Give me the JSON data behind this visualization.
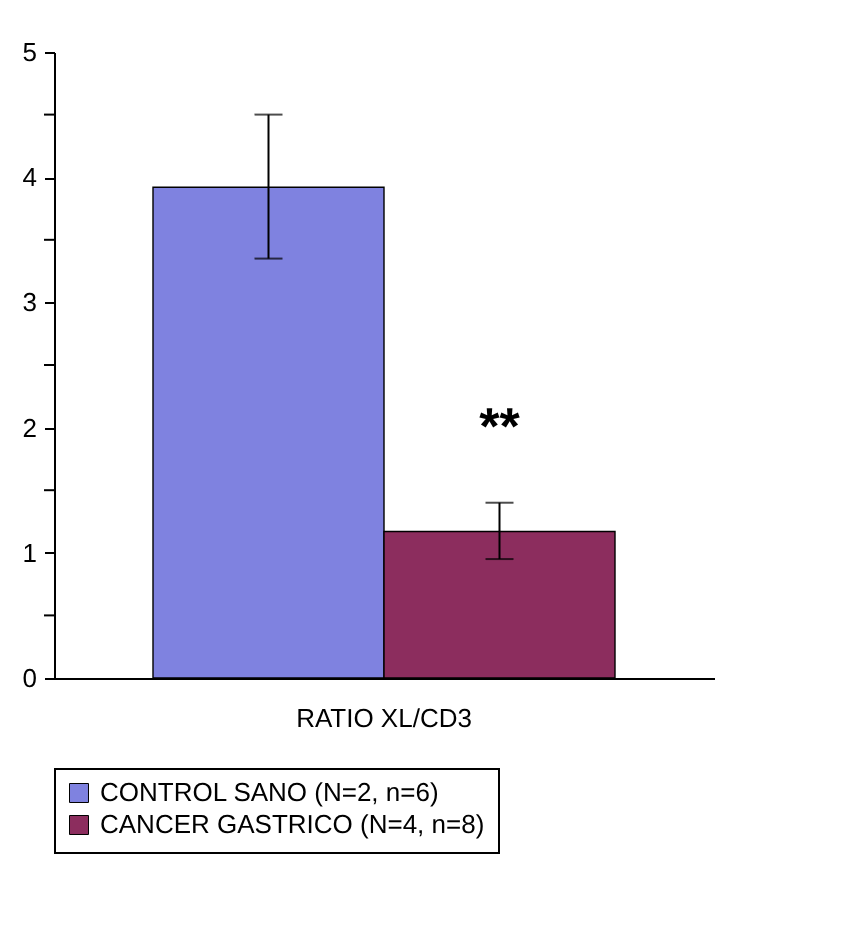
{
  "chart_data": {
    "type": "bar",
    "categories": [
      "RATIO XL/CD3"
    ],
    "series": [
      {
        "name": "CONTROL SANO (N=2, n=6)",
        "color": "#7f82e0",
        "values": [
          3.92
        ],
        "errors": [
          [
            3.35,
            4.5
          ]
        ]
      },
      {
        "name": "CANCER GASTRICO (N=4, n=8)",
        "color": "#8c2d5e",
        "values": [
          1.17
        ],
        "errors": [
          [
            0.95,
            1.4
          ]
        ]
      }
    ],
    "ylim": [
      0,
      5
    ],
    "yticks": [
      0,
      {
        "value": 0.5,
        "label": null
      },
      1,
      {
        "value": 1.5,
        "label": null
      },
      2,
      {
        "value": 2.5,
        "label": null
      },
      3,
      {
        "value": 3.5,
        "label": null
      },
      4,
      {
        "value": 4.5,
        "label": null
      },
      5
    ],
    "annotations": [
      {
        "text": "**",
        "x": "RATIO XL/CD3",
        "y": 2.0
      }
    ],
    "grid": false,
    "legend": "bottom"
  }
}
